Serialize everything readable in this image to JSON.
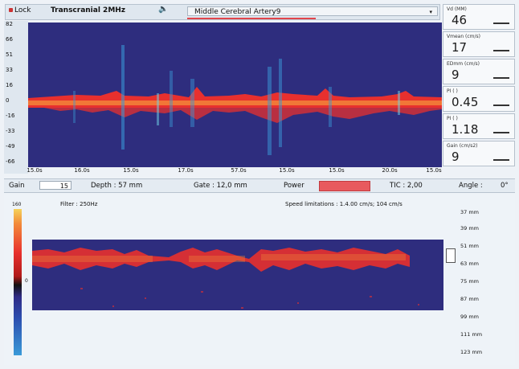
{
  "header": {
    "lock_label": "Lock",
    "probe": "Transcranial 2MHz",
    "vessel": "Middle Cerebral Artery9"
  },
  "spectrum": {
    "velocity_ticks": [
      "82",
      "66",
      "51",
      "33",
      "16",
      "0",
      "-16",
      "-33",
      "-49",
      "-66"
    ],
    "time_ticks": [
      "15.0s",
      "16.0s",
      "15.0s",
      "17.0s",
      "57.0s",
      "15.0s",
      "15.0s",
      "20.0s",
      "15.0s"
    ]
  },
  "params": [
    {
      "label": "Vd (MM)",
      "value": "46"
    },
    {
      "label": "Vmean (cm/s)",
      "value": "17"
    },
    {
      "label": "EDmm (cm/s)",
      "value": "9"
    },
    {
      "label": "PI ( )",
      "value": "0.45"
    },
    {
      "label": "PI ( )",
      "value": "1.18"
    },
    {
      "label": "Gain (cm/s2)",
      "value": "9"
    }
  ],
  "controls": {
    "gain_label": "Gain",
    "gain_value": "15",
    "depth": "Depth : 57 mm",
    "gate": "Gate : 12,0 mm",
    "power_label": "Power",
    "tic": "TIC : 2,00",
    "angle_label": "Angle :",
    "angle_value": "0°"
  },
  "mmode": {
    "colorbar_top": "160",
    "colorbar_mid": "0",
    "filter": "Filter : 250Hz",
    "speed": "Speed limitations : 1.4.00 cm/s; 104 cm/s",
    "depths": [
      "37 mm",
      "39 mm",
      "51 mm",
      "63 mm",
      "75 mm",
      "87 mm",
      "99 mm",
      "111 mm",
      "123 mm"
    ]
  },
  "colors": {
    "plot_bg": "#2e2d7e",
    "signal_red": "#e8302e",
    "signal_orange": "#f28a3a",
    "signal_blue": "#3a9ad8",
    "signal_cyan": "#6fd3e6"
  }
}
